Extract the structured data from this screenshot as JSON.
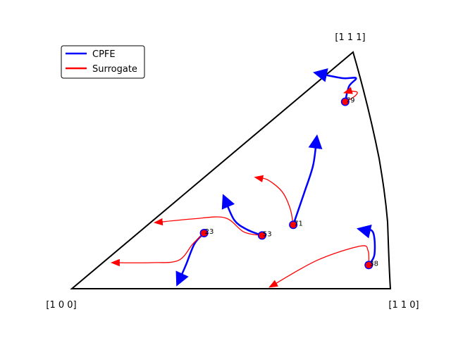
{
  "chart_data": {
    "type": "scatter",
    "title": "",
    "corners": [
      "[1 0 0]",
      "[1 1 0]",
      "[1 1 1]"
    ],
    "legend": {
      "placement": "top-left",
      "entries": [
        {
          "name": "CPFE",
          "color": "#0000ff"
        },
        {
          "name": "Surrogate",
          "color": "#ff0000"
        }
      ]
    },
    "grains": [
      {
        "label": "79",
        "start": [
          0.858,
          0.79
        ],
        "cpfe": [
          [
            0.858,
            0.79
          ],
          [
            0.87,
            0.855
          ],
          [
            0.892,
            0.89
          ],
          [
            0.85,
            0.89
          ],
          [
            0.773,
            0.91
          ]
        ],
        "surrogate": [
          [
            0.858,
            0.79
          ],
          [
            0.885,
            0.81
          ],
          [
            0.896,
            0.83
          ],
          [
            0.873,
            0.835
          ],
          [
            0.86,
            0.83
          ]
        ]
      },
      {
        "label": "71",
        "start": [
          0.695,
          0.27
        ],
        "cpfe": [
          [
            0.695,
            0.27
          ],
          [
            0.728,
            0.4
          ],
          [
            0.757,
            0.52
          ],
          [
            0.768,
            0.63
          ]
        ],
        "surrogate": [
          [
            0.695,
            0.27
          ],
          [
            0.685,
            0.34
          ],
          [
            0.66,
            0.41
          ],
          [
            0.615,
            0.46
          ],
          [
            0.58,
            0.47
          ]
        ]
      },
      {
        "label": "53",
        "start": [
          0.597,
          0.225
        ],
        "cpfe": [
          [
            0.597,
            0.225
          ],
          [
            0.55,
            0.25
          ],
          [
            0.51,
            0.29
          ],
          [
            0.48,
            0.38
          ]
        ],
        "surrogate": [
          [
            0.597,
            0.225
          ],
          [
            0.54,
            0.24
          ],
          [
            0.48,
            0.3
          ],
          [
            0.38,
            0.295
          ],
          [
            0.265,
            0.28
          ]
        ]
      },
      {
        "label": "23",
        "start": [
          0.415,
          0.235
        ],
        "cpfe": [
          [
            0.415,
            0.235
          ],
          [
            0.385,
            0.19
          ],
          [
            0.358,
            0.1
          ],
          [
            0.335,
            0.03
          ]
        ],
        "surrogate": [
          [
            0.415,
            0.235
          ],
          [
            0.38,
            0.19
          ],
          [
            0.335,
            0.12
          ],
          [
            0.25,
            0.11
          ],
          [
            0.13,
            0.11
          ]
        ]
      },
      {
        "label": "38",
        "start": [
          0.932,
          0.1
        ],
        "cpfe": [
          [
            0.932,
            0.1
          ],
          [
            0.95,
            0.145
          ],
          [
            0.945,
            0.24
          ],
          [
            0.91,
            0.25
          ]
        ],
        "surrogate": [
          [
            0.932,
            0.1
          ],
          [
            0.93,
            0.16
          ],
          [
            0.905,
            0.18
          ],
          [
            0.77,
            0.12
          ],
          [
            0.625,
            0.01
          ]
        ]
      }
    ]
  }
}
